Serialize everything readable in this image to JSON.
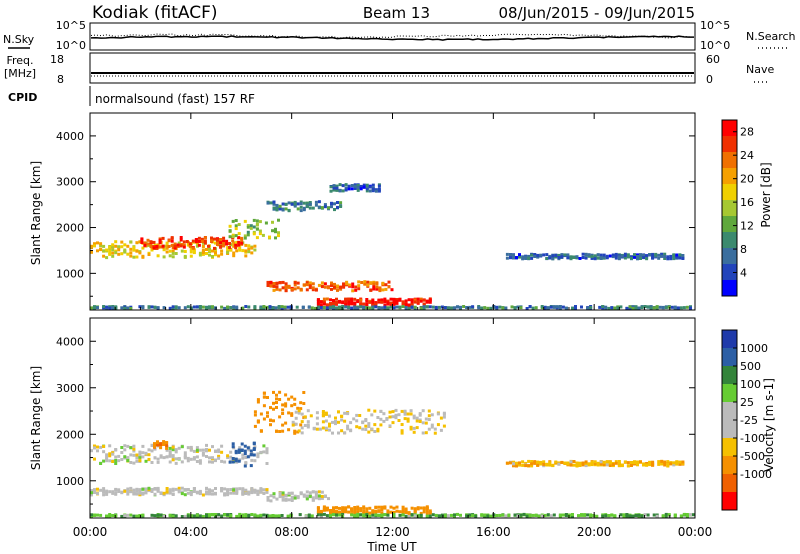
{
  "header": {
    "station": "Kodiak (fitACF)",
    "beam": "Beam 13",
    "date_range": "08/Jun/2015 - 09/Jun/2015"
  },
  "top_panel": {
    "left_label": "N.Sky",
    "right_label": "N.Search",
    "y_ticks": [
      "10^5",
      "10^0"
    ]
  },
  "freq_panel": {
    "left_label_line1": "Freq.",
    "left_label_line2": "[MHz]",
    "right_label": "Nave",
    "left_ticks": [
      "18",
      "8"
    ],
    "right_ticks": [
      "60",
      "0"
    ]
  },
  "cpid": {
    "label": "CPID",
    "text": "normalsound (fast) 157 RF"
  },
  "colors": {
    "power_scale": [
      "#0000ff",
      "#2244bb",
      "#3a6e9e",
      "#3b8a6e",
      "#5fa83c",
      "#a6c832",
      "#f0d000",
      "#f5a000",
      "#f07000",
      "#f03000",
      "#ff0000"
    ],
    "velocity_scale": [
      "#1f3aaa",
      "#2c5fa5",
      "#33843a",
      "#66cc33",
      "#bbbbbb",
      "#bbbbbb",
      "#f5c000",
      "#f59000",
      "#f06000",
      "#ff0000"
    ]
  },
  "chart_data": [
    {
      "type": "heatmap",
      "title": "Power",
      "ylabel": "Slant Range [km]",
      "xlabel": "",
      "y_ticks": [
        "1000",
        "2000",
        "3000",
        "4000"
      ],
      "ylim": [
        200,
        4500
      ],
      "xlim_hours": [
        0,
        24
      ],
      "colorbar": {
        "label": "Power [dB]",
        "ticks": [
          "4",
          "8",
          "12",
          "16",
          "20",
          "24",
          "28"
        ],
        "range": [
          0,
          30
        ]
      },
      "features": [
        {
          "t_start": 0.0,
          "t_end": 6.5,
          "range_km": 1550,
          "width_km": 350,
          "value": 18
        },
        {
          "t_start": 2.0,
          "t_end": 6.0,
          "range_km": 1700,
          "width_km": 250,
          "value": 26
        },
        {
          "t_start": 5.5,
          "t_end": 7.5,
          "range_km": 2000,
          "width_km": 400,
          "value": 14
        },
        {
          "t_start": 7.0,
          "t_end": 10.0,
          "range_km": 2500,
          "width_km": 200,
          "value": 8
        },
        {
          "t_start": 9.5,
          "t_end": 11.5,
          "range_km": 2900,
          "width_km": 150,
          "value": 6
        },
        {
          "t_start": 7.0,
          "t_end": 12.0,
          "range_km": 750,
          "width_km": 200,
          "value": 24
        },
        {
          "t_start": 9.0,
          "t_end": 13.5,
          "range_km": 400,
          "width_km": 150,
          "value": 28
        },
        {
          "t_start": 16.5,
          "t_end": 23.5,
          "range_km": 1400,
          "width_km": 100,
          "value": 6
        },
        {
          "t_start": 0.0,
          "t_end": 24.0,
          "range_km": 270,
          "width_km": 80,
          "value": 8
        }
      ]
    },
    {
      "type": "heatmap",
      "title": "Velocity",
      "ylabel": "Slant Range [km]",
      "xlabel": "Time UT",
      "y_ticks": [
        "1000",
        "2000",
        "3000",
        "4000"
      ],
      "x_ticks": [
        "00:00",
        "04:00",
        "08:00",
        "12:00",
        "16:00",
        "20:00",
        "00:00"
      ],
      "ylim": [
        200,
        4500
      ],
      "xlim_hours": [
        0,
        24
      ],
      "colorbar": {
        "label": "Velocity [m s-1]",
        "ticks": [
          "1000",
          "500",
          "100",
          "25",
          "-25",
          "-100",
          "-500",
          "-1000"
        ],
        "range": [
          -1000,
          1000
        ]
      },
      "features": [
        {
          "t_start": 0.0,
          "t_end": 7.0,
          "range_km": 1600,
          "width_km": 400,
          "value": 0
        },
        {
          "t_start": 0.0,
          "t_end": 7.0,
          "range_km": 800,
          "width_km": 150,
          "value": 0
        },
        {
          "t_start": 2.5,
          "t_end": 3.0,
          "range_km": 1800,
          "width_km": 150,
          "value": -300
        },
        {
          "t_start": 5.5,
          "t_end": 6.5,
          "range_km": 1600,
          "width_km": 500,
          "value": 500
        },
        {
          "t_start": 6.5,
          "t_end": 8.5,
          "range_km": 2500,
          "width_km": 900,
          "value": -200
        },
        {
          "t_start": 7.0,
          "t_end": 9.5,
          "range_km": 700,
          "width_km": 200,
          "value": 0
        },
        {
          "t_start": 9.0,
          "t_end": 13.5,
          "range_km": 400,
          "width_km": 150,
          "value": -150
        },
        {
          "t_start": 8.0,
          "t_end": 14.0,
          "range_km": 2300,
          "width_km": 500,
          "value": -20
        },
        {
          "t_start": 16.5,
          "t_end": 23.5,
          "range_km": 1400,
          "width_km": 100,
          "value": -50
        },
        {
          "t_start": 0.0,
          "t_end": 24.0,
          "range_km": 270,
          "width_km": 80,
          "value": 50
        }
      ]
    }
  ]
}
